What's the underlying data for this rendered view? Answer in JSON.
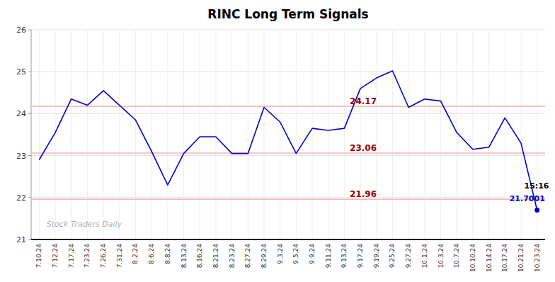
{
  "chart_data": {
    "type": "line",
    "title": "RINC Long Term Signals",
    "categories": [
      "7.10.24",
      "7.12.24",
      "7.17.24",
      "7.23.24",
      "7.26.24",
      "7.31.24",
      "8.2.24",
      "8.6.24",
      "8.8.24",
      "8.13.24",
      "8.16.24",
      "8.21.24",
      "8.23.24",
      "8.27.24",
      "8.29.24",
      "9.3.24",
      "9.5.24",
      "9.9.24",
      "9.11.24",
      "9.13.24",
      "9.17.24",
      "9.19.24",
      "9.25.24",
      "9.27.24",
      "10.1.24",
      "10.3.24",
      "10.7.24",
      "10.10.24",
      "10.14.24",
      "10.17.24",
      "10.21.24",
      "10.23.24"
    ],
    "values": [
      22.9,
      23.55,
      24.35,
      24.2,
      24.55,
      24.2,
      23.85,
      23.1,
      22.3,
      23.05,
      23.45,
      23.45,
      23.05,
      23.05,
      24.15,
      23.8,
      23.05,
      23.65,
      23.6,
      23.65,
      24.6,
      24.85,
      25.02,
      24.15,
      24.35,
      24.3,
      23.55,
      23.15,
      23.2,
      23.9,
      23.3,
      21.7
    ],
    "color": "#0000cc",
    "reference_lines": [
      {
        "value": 24.17,
        "label": "24.17",
        "color": "#ffb3b3",
        "label_color": "#990000"
      },
      {
        "value": 23.06,
        "label": "23.06",
        "color": "#ffb3b3",
        "label_color": "#990000"
      },
      {
        "value": 21.96,
        "label": "21.96",
        "color": "#ffb3b3",
        "label_color": "#990000"
      }
    ],
    "last_price": 21.7001,
    "last_time": "15:16",
    "watermark": "Stock Traders Daily",
    "ylim": [
      21,
      26
    ],
    "yticks": [
      21,
      22,
      23,
      24,
      25,
      26
    ],
    "grid": true
  }
}
